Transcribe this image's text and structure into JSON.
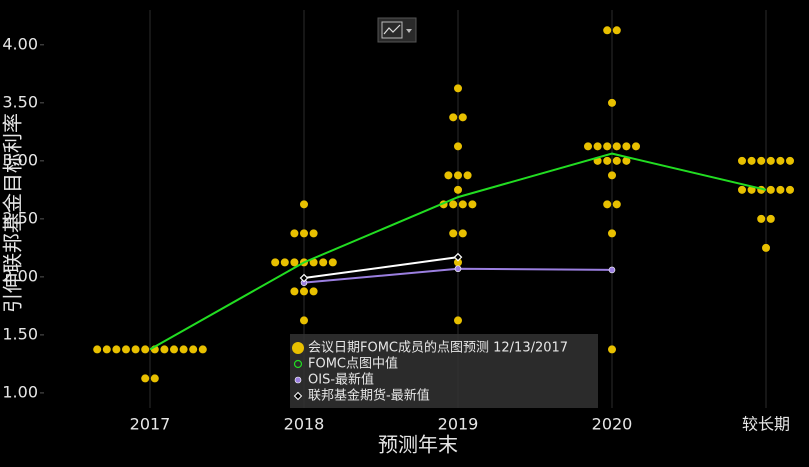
{
  "chart_data": {
    "type": "dotplot",
    "xlabel": "预测年末",
    "ylabel": "引伸联邦基金目标利率",
    "categories": [
      "2017",
      "2018",
      "2019",
      "2020",
      "较长期"
    ],
    "ylim": [
      0.87,
      4.3
    ],
    "yticks": [
      {
        "value": 1,
        "label": "1.00"
      },
      {
        "value": 1.5,
        "label": "1.50"
      },
      {
        "value": 2,
        "label": "2.00"
      },
      {
        "value": 2.5,
        "label": "2.50"
      },
      {
        "value": 3,
        "label": "3.00"
      },
      {
        "value": 3.5,
        "label": "3.50"
      },
      {
        "value": 4,
        "label": "4.00"
      }
    ],
    "xgrid": true,
    "legend": "bottom",
    "series": [
      {
        "name": "会议日期FOMC成员的点图预测 12/13/2017",
        "kind": "dots",
        "color": "#e8c000",
        "values": [
          [
            1.375,
            1.375,
            1.375,
            1.375,
            1.375,
            1.375,
            1.375,
            1.375,
            1.375,
            1.375,
            1.375,
            1.375,
            1.125,
            1.125
          ],
          [
            2.625,
            2.375,
            2.375,
            2.375,
            2.125,
            2.125,
            2.125,
            2.125,
            2.125,
            2.125,
            2.125,
            1.875,
            1.875,
            1.875,
            1.625
          ],
          [
            3.625,
            3.375,
            3.375,
            3.125,
            2.875,
            2.875,
            2.875,
            2.75,
            2.625,
            2.625,
            2.625,
            2.625,
            2.375,
            2.375,
            2.125,
            1.625
          ],
          [
            4.125,
            4.125,
            3.5,
            3.125,
            3.125,
            3.125,
            3.125,
            3.125,
            3.125,
            3.0,
            3.0,
            3.0,
            3.0,
            2.875,
            2.625,
            2.625,
            2.375,
            1.375
          ],
          [
            3.0,
            3.0,
            3.0,
            3.0,
            3.0,
            3.0,
            2.75,
            2.75,
            2.75,
            2.75,
            2.75,
            2.75,
            2.5,
            2.5,
            2.25
          ]
        ]
      },
      {
        "name": "FOMC点图中值",
        "kind": "line",
        "marker": "hollow-circle",
        "color": "#22dd22",
        "values": [
          1.375,
          2.125,
          2.6875,
          3.0625,
          2.75
        ]
      },
      {
        "name": "OIS-最新值",
        "kind": "line",
        "marker": "circle",
        "color": "#9b7fe0",
        "values": [
          null,
          1.95,
          2.07,
          2.06,
          null
        ]
      },
      {
        "name": "联邦基金期货-最新值",
        "kind": "line",
        "marker": "diamond",
        "color": "#ffffff",
        "values": [
          null,
          1.99,
          2.17,
          null,
          null
        ]
      }
    ]
  }
}
